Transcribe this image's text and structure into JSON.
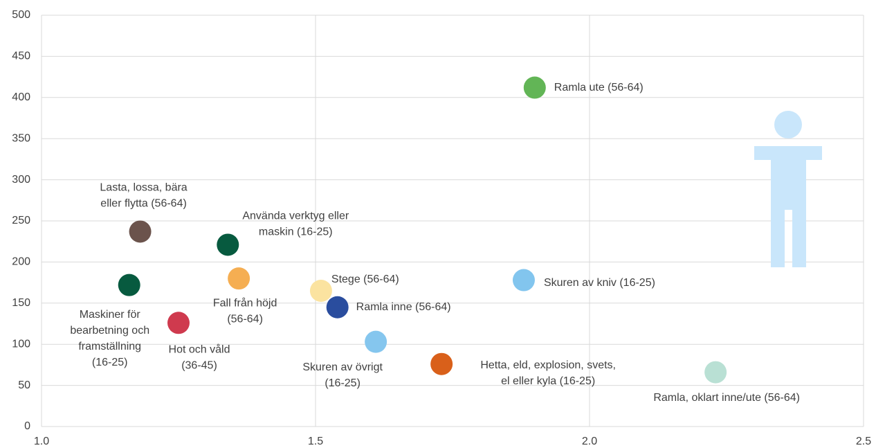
{
  "chart_data": {
    "type": "scatter",
    "xlim": [
      1.0,
      2.5
    ],
    "xticks": [
      {
        "value": 1.0,
        "label": "1.0"
      },
      1.5,
      {
        "value": 2.0,
        "label": "2.0"
      },
      2.5
    ],
    "ylim": [
      0,
      500
    ],
    "yticks": [
      0,
      50,
      100,
      150,
      200,
      250,
      300,
      350,
      400,
      450,
      500
    ],
    "grid": true,
    "x": [
      1.9,
      1.88,
      2.23,
      1.73,
      1.61,
      1.54,
      1.51,
      1.36,
      1.34,
      1.18,
      1.16,
      1.25
    ],
    "values": [
      412,
      178,
      66,
      76,
      103,
      145,
      165,
      180,
      221,
      237,
      172,
      126
    ],
    "colors": [
      "#62b556",
      "#82c5ee",
      "#b9e0d4",
      "#d9601a",
      "#85c6ee",
      "#2a4d9e",
      "#fbe3a0",
      "#f5ae52",
      "#075a3f",
      "#6b534c",
      "#075a3f",
      "#cf3a4e"
    ],
    "labels": [
      [
        "Ramla ute (56-64)"
      ],
      [
        "Skuren av kniv (16-25)"
      ],
      [
        "Ramla, oklart inne/ute (56-64)"
      ],
      [
        "Hetta, eld, explosion, svets,",
        "el eller kyla (16-25)"
      ],
      [
        "Skuren av övrigt",
        "(16-25)"
      ],
      [
        "Ramla inne (56-64)"
      ],
      [
        "Stege (56-64)"
      ],
      [
        "Fall från höjd",
        "(56-64)"
      ],
      [
        "Använda verktyg eller",
        "maskin (16-25)"
      ],
      [
        "Lasta, lossa, bära",
        "eller flytta (56-64)"
      ],
      [
        "Maskiner för",
        "bearbetning och",
        "framställning",
        "(16-25)"
      ],
      [
        "Hot och våld",
        "(36-45)"
      ]
    ]
  }
}
